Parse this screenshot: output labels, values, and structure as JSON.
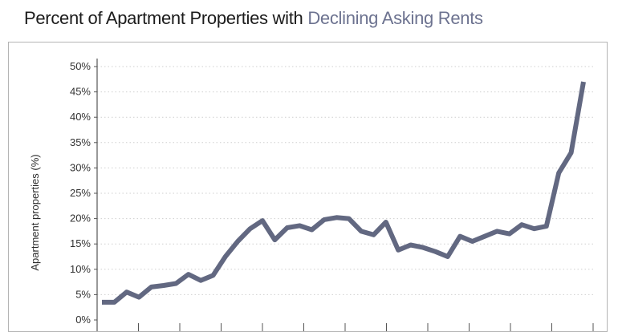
{
  "title": {
    "main": "Percent of Apartment Properties with",
    "accent": "Declining Asking Rents"
  },
  "colors": {
    "line": "#626881",
    "accent_title": "#6d7390",
    "grid": "#cfcfcf",
    "axis": "#555555"
  },
  "chart_data": {
    "type": "line",
    "title": "Percent of Apartment Properties with Declining Asking Rents",
    "xlabel": "",
    "ylabel": "Apartment properties (%)",
    "ylim": [
      0,
      50
    ],
    "yticks": [
      0,
      5,
      10,
      15,
      20,
      25,
      30,
      35,
      40,
      45,
      50
    ],
    "ytick_labels": [
      "0%",
      "5%",
      "10%",
      "15%",
      "20%",
      "25%",
      "30%",
      "35%",
      "40%",
      "45%",
      "50%"
    ],
    "grid": true,
    "x_tick_count": 13,
    "series": [
      {
        "values": [
          3.5,
          3.5,
          5.5,
          4.5,
          6.5,
          6.8,
          7.2,
          9.0,
          7.8,
          8.8,
          12.5,
          15.5,
          18.0,
          19.6,
          15.8,
          18.2,
          18.6,
          17.8,
          19.8,
          20.2,
          20.0,
          17.5,
          16.8,
          19.3,
          13.8,
          14.8,
          14.3,
          13.5,
          12.5,
          16.5,
          15.5,
          16.5,
          17.5,
          17.0,
          18.8,
          18.0,
          18.5,
          29.0,
          33.0,
          47.0
        ]
      }
    ]
  }
}
